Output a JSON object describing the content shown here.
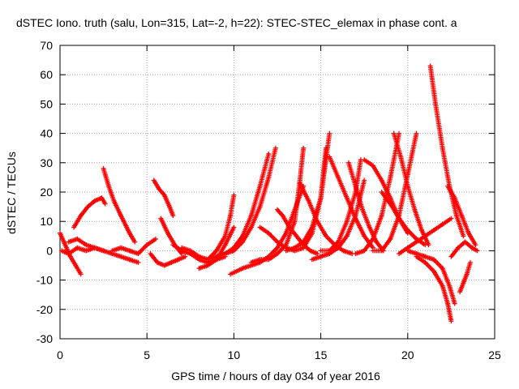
{
  "chart_data": {
    "type": "scatter",
    "title": "dSTEC Iono. truth (salu, Lon=315, Lat=-2, h=22): STEC-STEC_elemax in phase cont. a",
    "xlabel": "GPS time / hours of day 034 of year 2016",
    "ylabel": "dSTEC  / TECUs",
    "xlim": [
      0,
      25
    ],
    "ylim": [
      -30,
      70
    ],
    "x_ticks": [
      "0",
      "5",
      "10",
      "15",
      "20",
      "25"
    ],
    "y_ticks": [
      "-30",
      "-20",
      "-10",
      "0",
      "10",
      "20",
      "30",
      "40",
      "50",
      "60",
      "70"
    ],
    "grid": true,
    "marker": "+",
    "color": "#ff0000",
    "series": [
      {
        "x": [
          0.0,
          0.3,
          0.6,
          0.9,
          1.2
        ],
        "y": [
          6,
          2,
          -2,
          -5,
          -8
        ]
      },
      {
        "x": [
          0.1,
          0.5,
          1.0,
          1.5,
          2.0,
          2.5
        ],
        "y": [
          0,
          -1,
          1,
          0,
          1,
          0
        ]
      },
      {
        "x": [
          0.8,
          1.2,
          1.6,
          2.0,
          2.4,
          2.6
        ],
        "y": [
          8,
          12,
          15,
          17,
          18,
          16
        ]
      },
      {
        "x": [
          2.5,
          2.8,
          3.1,
          3.5,
          4.0,
          4.3
        ],
        "y": [
          28,
          22,
          17,
          12,
          6,
          3
        ]
      },
      {
        "x": [
          0.5,
          1.0,
          1.5,
          2.0,
          2.5,
          3.0,
          3.5,
          4.0,
          4.5
        ],
        "y": [
          3,
          4,
          2,
          1,
          0,
          -1,
          -2,
          -3,
          -4
        ]
      },
      {
        "x": [
          3.0,
          3.5,
          4.0,
          4.5,
          5.0,
          5.5
        ],
        "y": [
          0,
          1,
          0,
          -1,
          2,
          4
        ]
      },
      {
        "x": [
          5.4,
          5.7,
          6.0,
          6.3,
          6.5
        ],
        "y": [
          24,
          21,
          19,
          15,
          12
        ]
      },
      {
        "x": [
          5.8,
          6.2,
          6.6,
          7.0
        ],
        "y": [
          11,
          6,
          2,
          -1
        ]
      },
      {
        "x": [
          5.2,
          5.6,
          6.0,
          6.4,
          6.8,
          7.2
        ],
        "y": [
          -1,
          -4,
          -5,
          -4,
          -3,
          -2
        ]
      },
      {
        "x": [
          6.5,
          7.0,
          7.5,
          8.0,
          8.5,
          9.0,
          9.5
        ],
        "y": [
          2,
          0,
          -1,
          -3,
          -4,
          -3,
          -2
        ]
      },
      {
        "x": [
          8.0,
          8.5,
          9.0,
          9.5,
          10.0
        ],
        "y": [
          -6,
          -5,
          -3,
          2,
          8
        ]
      },
      {
        "x": [
          7.0,
          7.5,
          8.0,
          8.5,
          9.0,
          9.5,
          9.8,
          10.0
        ],
        "y": [
          1,
          0,
          -2,
          -3,
          0,
          5,
          12,
          19
        ]
      },
      {
        "x": [
          9.0,
          9.5,
          10.0,
          10.5,
          11.0,
          11.5,
          12.0
        ],
        "y": [
          -2,
          -1,
          1,
          5,
          12,
          22,
          33
        ]
      },
      {
        "x": [
          8.5,
          9.0,
          9.5,
          10.0,
          10.5,
          11.0,
          11.5,
          12.0,
          12.4
        ],
        "y": [
          -3,
          -2,
          -1,
          0,
          3,
          8,
          15,
          25,
          35
        ]
      },
      {
        "x": [
          9.8,
          10.5,
          11.0,
          11.5,
          12.0,
          12.5,
          13.0,
          13.5,
          14.0
        ],
        "y": [
          -8,
          -6,
          -5,
          -4,
          -2,
          1,
          6,
          14,
          22
        ]
      },
      {
        "x": [
          11.0,
          11.5,
          12.0,
          12.5,
          13.0,
          13.5,
          13.8,
          14.0
        ],
        "y": [
          -4,
          -3,
          -3,
          -1,
          2,
          10,
          24,
          35
        ]
      },
      {
        "x": [
          12.5,
          12.8,
          13.2,
          13.6,
          14.0,
          14.4,
          14.8
        ],
        "y": [
          14,
          12,
          8,
          5,
          2,
          0,
          -1
        ]
      },
      {
        "x": [
          11.5,
          12.0,
          12.5,
          13.0,
          13.5,
          14.0,
          14.5,
          15.0,
          15.5
        ],
        "y": [
          8,
          6,
          3,
          1,
          0,
          1,
          6,
          18,
          40
        ]
      },
      {
        "x": [
          13.0,
          13.5,
          14.0,
          14.5,
          15.0,
          15.3
        ],
        "y": [
          0,
          1,
          3,
          8,
          18,
          35
        ]
      },
      {
        "x": [
          13.8,
          14.3,
          14.8,
          15.3,
          15.8,
          16.3,
          16.8
        ],
        "y": [
          23,
          17,
          10,
          5,
          2,
          0,
          -1
        ]
      },
      {
        "x": [
          15.5,
          16.0,
          16.5,
          17.0,
          17.5,
          18.0
        ],
        "y": [
          32,
          25,
          18,
          11,
          5,
          1
        ]
      },
      {
        "x": [
          14.5,
          15.0,
          15.5,
          16.0,
          16.5,
          17.0,
          17.5
        ],
        "y": [
          -3,
          -2,
          -1,
          1,
          5,
          12,
          24
        ]
      },
      {
        "x": [
          15.0,
          15.5,
          16.0,
          16.5,
          17.0,
          17.3
        ],
        "y": [
          0,
          0,
          3,
          10,
          20,
          31
        ]
      },
      {
        "x": [
          16.6,
          17.0,
          17.4,
          17.8,
          18.2,
          18.6
        ],
        "y": [
          30,
          22,
          14,
          8,
          3,
          0
        ]
      },
      {
        "x": [
          17.0,
          17.5,
          18.0,
          18.5,
          19.0,
          19.5
        ],
        "y": [
          -1,
          0,
          4,
          12,
          25,
          40
        ]
      },
      {
        "x": [
          17.5,
          18.0,
          18.5,
          19.0,
          19.5,
          20.0
        ],
        "y": [
          31,
          29,
          24,
          18,
          11,
          6
        ]
      },
      {
        "x": [
          18.0,
          18.5,
          19.0,
          19.5,
          20.0,
          20.5
        ],
        "y": [
          0,
          0,
          4,
          12,
          26,
          40
        ]
      },
      {
        "x": [
          18.5,
          19.0,
          19.5,
          20.0,
          20.5,
          21.0
        ],
        "y": [
          20,
          16,
          11,
          7,
          4,
          2
        ]
      },
      {
        "x": [
          19.2,
          19.6,
          20.0,
          20.4,
          20.8,
          21.2
        ],
        "y": [
          40,
          32,
          22,
          14,
          7,
          2
        ]
      },
      {
        "x": [
          19.5,
          20.0,
          20.5,
          21.0,
          21.5,
          22.0,
          22.5
        ],
        "y": [
          -1,
          1,
          3,
          5,
          7,
          9,
          11
        ]
      },
      {
        "x": [
          20.0,
          20.5,
          21.0,
          21.5,
          22.0,
          22.4,
          22.7
        ],
        "y": [
          0,
          -1,
          -2,
          -3,
          -6,
          -12,
          -18
        ]
      },
      {
        "x": [
          20.5,
          21.0,
          21.5,
          22.0,
          22.3,
          22.5
        ],
        "y": [
          -2,
          -4,
          -7,
          -12,
          -18,
          -24
        ]
      },
      {
        "x": [
          21.3,
          21.6,
          22.0,
          22.4,
          22.8,
          23.2
        ],
        "y": [
          63,
          50,
          35,
          22,
          12,
          5
        ]
      },
      {
        "x": [
          22.3,
          22.7,
          23.1,
          23.5,
          23.9
        ],
        "y": [
          22,
          18,
          12,
          6,
          2
        ]
      },
      {
        "x": [
          22.5,
          22.9,
          23.3,
          23.7,
          24.0
        ],
        "y": [
          -2,
          1,
          3,
          1,
          0
        ]
      },
      {
        "x": [
          23.0,
          23.2,
          23.4,
          23.6
        ],
        "y": [
          -14,
          -11,
          -8,
          -4
        ]
      }
    ]
  }
}
